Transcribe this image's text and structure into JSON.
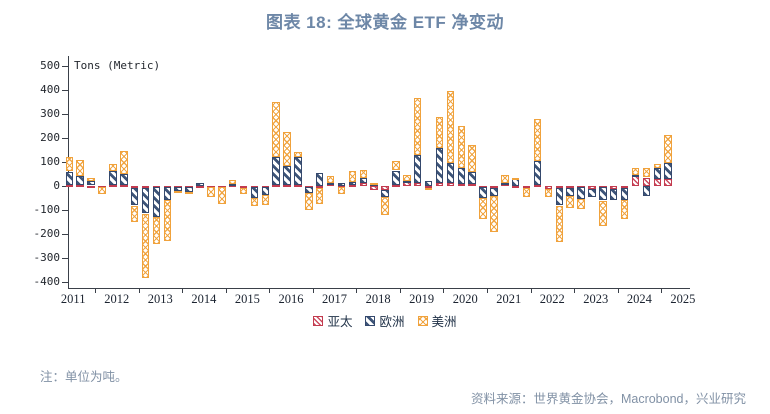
{
  "title": "图表 18: 全球黄金 ETF 净变动",
  "note": "注：单位为吨。",
  "source": "资料来源：世界黄金协会，Macrobond，兴业研究",
  "chart_data": {
    "type": "bar",
    "stacked": true,
    "title": "图表 18: 全球黄金 ETF 净变动",
    "unit_label": "Tons (Metric)",
    "ylim": [
      -400,
      500
    ],
    "y_ticks": [
      500,
      400,
      300,
      200,
      100,
      0,
      -100,
      -200,
      -300,
      -400
    ],
    "grid": false,
    "legend_position": "bottom",
    "x_year_labels": [
      "2011",
      "2012",
      "2013",
      "2014",
      "2015",
      "2016",
      "2017",
      "2018",
      "2019",
      "2020",
      "2021",
      "2022",
      "2023",
      "2024",
      "2025"
    ],
    "legend": [
      {
        "name": "亚太",
        "color": "#c23b4f"
      },
      {
        "name": "欧洲",
        "color": "#35496d"
      },
      {
        "name": "美洲",
        "color": "#f0a23c"
      }
    ],
    "quarters": [
      "2011Q2",
      "2011Q3",
      "2011Q4",
      "2012Q1",
      "2012Q2",
      "2012Q3",
      "2012Q4",
      "2013Q1",
      "2013Q2",
      "2013Q3",
      "2013Q4",
      "2014Q1",
      "2014Q2",
      "2014Q3",
      "2014Q4",
      "2015Q1",
      "2015Q2",
      "2015Q3",
      "2015Q4",
      "2016Q1",
      "2016Q2",
      "2016Q3",
      "2016Q4",
      "2017Q1",
      "2017Q2",
      "2017Q3",
      "2017Q4",
      "2018Q1",
      "2018Q2",
      "2018Q3",
      "2018Q4",
      "2019Q1",
      "2019Q2",
      "2019Q3",
      "2019Q4",
      "2020Q1",
      "2020Q2",
      "2020Q3",
      "2020Q4",
      "2021Q1",
      "2021Q2",
      "2021Q3",
      "2021Q4",
      "2022Q1",
      "2022Q2",
      "2022Q3",
      "2022Q4",
      "2023Q1",
      "2023Q2",
      "2023Q3",
      "2023Q4",
      "2024Q1",
      "2024Q2",
      "2024Q3",
      "2024Q4",
      "2025Q1"
    ],
    "series": [
      {
        "name": "亚太",
        "values": [
          5,
          3,
          2,
          -5,
          3,
          3,
          -8,
          -8,
          -5,
          -3,
          -3,
          -5,
          -5,
          -5,
          -5,
          5,
          -10,
          -5,
          -5,
          5,
          4,
          4,
          -5,
          -8,
          9,
          -5,
          5,
          12,
          -16,
          -16,
          4,
          15,
          11,
          -7,
          11,
          14,
          8,
          10,
          -5,
          -10,
          10,
          -5,
          -10,
          5,
          -12,
          -8,
          -8,
          -5,
          -12,
          -5,
          -12,
          -8,
          40,
          35,
          30,
          30
        ]
      },
      {
        "name": "欧洲",
        "values": [
          55,
          40,
          20,
          0,
          58,
          47,
          -73,
          -106,
          -122,
          -55,
          -16,
          -20,
          12,
          0,
          0,
          5,
          0,
          -45,
          -34,
          115,
          80,
          118,
          -25,
          55,
          3,
          14,
          12,
          22,
          10,
          -31,
          60,
          5,
          118,
          20,
          145,
          81,
          66,
          50,
          -45,
          -30,
          3,
          28,
          0,
          100,
          0,
          -73,
          -35,
          -50,
          -35,
          -55,
          -45,
          -50,
          5,
          -40,
          45,
          65
        ]
      },
      {
        "name": "美洲",
        "values": [
          62,
          65,
          10,
          -29,
          30,
          96,
          -68,
          -266,
          -115,
          -170,
          -10,
          -10,
          0,
          -40,
          -70,
          15,
          -25,
          -35,
          -40,
          230,
          140,
          20,
          -70,
          -68,
          31,
          -30,
          44,
          34,
          3,
          -75,
          40,
          25,
          237,
          -10,
          131,
          301,
          177,
          110,
          -85,
          -150,
          32,
          5,
          -35,
          175,
          -33,
          -153,
          -50,
          -40,
          0,
          -105,
          0,
          -80,
          30,
          40,
          15,
          115
        ]
      }
    ]
  }
}
